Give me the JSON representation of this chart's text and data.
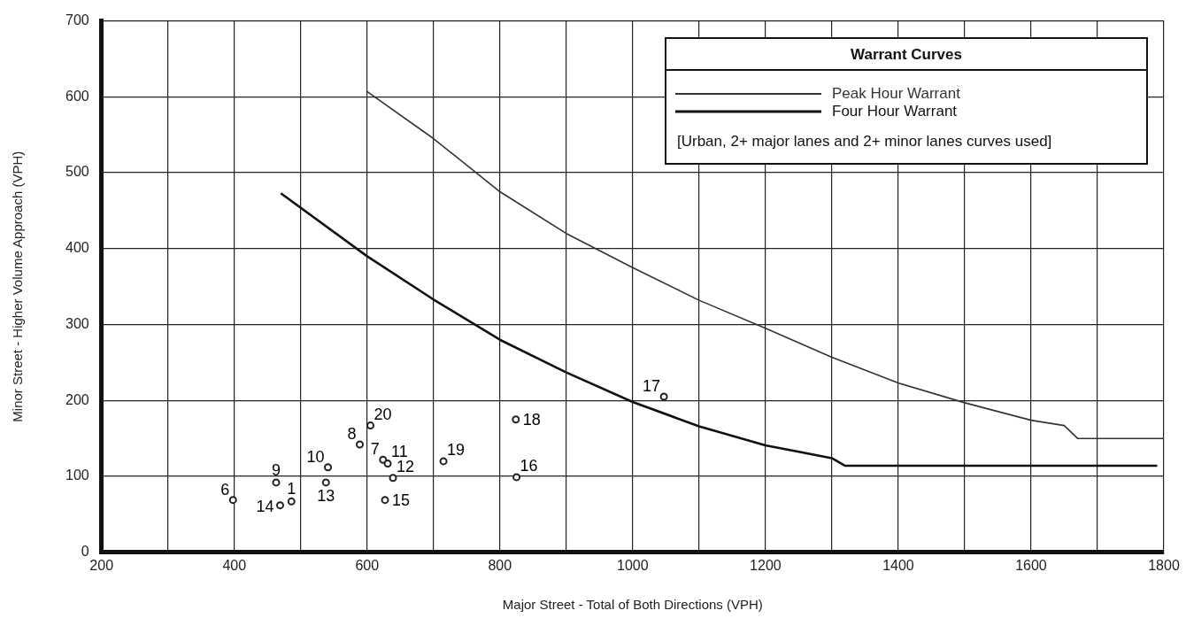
{
  "chart_data": {
    "type": "scatter",
    "xlabel": "Major Street - Total of Both Directions (VPH)",
    "ylabel": "Minor Street - Higher Volume Approach (VPH)",
    "legend_title": "Warrant Curves",
    "annotations": [
      "[Urban,  2+ major lanes and 2+ minor lanes curves used]",
      {
        "text": "6",
        "x": 398,
        "y": 69
      },
      {
        "text": "9",
        "x": 463,
        "y": 92
      },
      {
        "text": "14",
        "x": 469,
        "y": 62
      },
      {
        "text": "1",
        "x": 486,
        "y": 67
      },
      {
        "text": "13",
        "x": 538,
        "y": 92
      },
      {
        "text": "10",
        "x": 541,
        "y": 112
      },
      {
        "text": "8",
        "x": 589,
        "y": 142
      },
      {
        "text": "20",
        "x": 605,
        "y": 167
      },
      {
        "text": "7",
        "x": 624,
        "y": 122
      },
      {
        "text": "15",
        "x": 627,
        "y": 69
      },
      {
        "text": "11",
        "x": 631,
        "y": 117
      },
      {
        "text": "12",
        "x": 639,
        "y": 98
      },
      {
        "text": "19",
        "x": 715,
        "y": 120
      },
      {
        "text": "18",
        "x": 824,
        "y": 175
      },
      {
        "text": "16",
        "x": 825,
        "y": 99
      },
      {
        "text": "17",
        "x": 1047,
        "y": 205
      }
    ],
    "xlim": [
      200,
      1800
    ],
    "ylim": [
      0,
      700
    ],
    "xticks": [
      200,
      {
        "value": 300,
        "label": null
      },
      400,
      {
        "value": 500,
        "label": null
      },
      600,
      {
        "value": 700,
        "label": null
      },
      800,
      {
        "value": 900,
        "label": null
      },
      1000,
      {
        "value": 1100,
        "label": null
      },
      1200,
      {
        "value": 1300,
        "label": null
      },
      1400,
      {
        "value": 1500,
        "label": null
      },
      1600,
      {
        "value": 1700,
        "label": null
      },
      1800
    ],
    "yticks": [
      0,
      100,
      200,
      300,
      400,
      500,
      600,
      700
    ],
    "grid": true,
    "legend": "top right",
    "series": [
      {
        "type": "line",
        "name": "Peak Hour Warrant",
        "color": "#333333",
        "marker": "none",
        "x": [
          600,
          700,
          800,
          900,
          1000,
          1100,
          1200,
          1300,
          1400,
          1500,
          1600,
          1650,
          1670,
          1800
        ],
        "values": [
          607,
          545,
          475,
          420,
          375,
          332,
          295,
          257,
          223,
          197,
          174,
          167,
          150,
          150
        ]
      },
      {
        "type": "line",
        "name": "Four Hour Warrant",
        "color": "#111111",
        "marker": "none",
        "x": [
          470,
          600,
          700,
          800,
          900,
          1000,
          1100,
          1200,
          1300,
          1320,
          1790
        ],
        "values": [
          473,
          390,
          333,
          280,
          237,
          198,
          166,
          141,
          124,
          114,
          114
        ]
      },
      {
        "type": "scatter",
        "color": "#222222",
        "marker": "circle",
        "x": [
          486,
          624,
          589,
          463,
          541,
          631,
          639,
          538,
          469,
          627,
          825,
          1047,
          824,
          715,
          605,
          398
        ],
        "values": [
          67,
          122,
          142,
          92,
          112,
          117,
          98,
          92,
          62,
          69,
          99,
          205,
          175,
          120,
          167,
          69
        ]
      }
    ]
  }
}
